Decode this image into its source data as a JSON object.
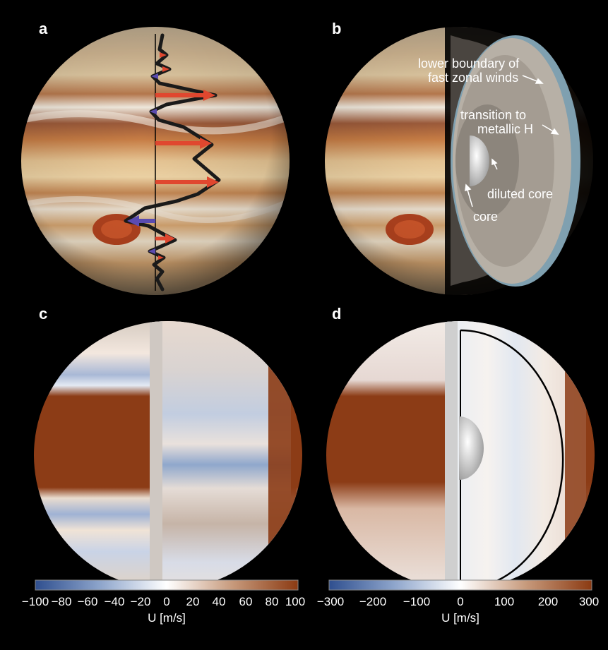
{
  "panels": {
    "a": {
      "label": "a"
    },
    "b": {
      "label": "b",
      "annotations": {
        "lower_boundary": [
          "lower boundary of",
          "fast zonal winds"
        ],
        "transition": [
          "transition to",
          "metallic H"
        ],
        "diluted_core": "diluted core",
        "core": "core"
      }
    },
    "c": {
      "label": "c"
    },
    "d": {
      "label": "d"
    }
  },
  "colorbars": [
    {
      "ticks": [
        "−100",
        "−80",
        "−60",
        "−40",
        "−20",
        "0",
        "20",
        "40",
        "60",
        "80",
        "100"
      ],
      "title": "U [m/s]"
    },
    {
      "ticks": [
        "−300",
        "−200",
        "−100",
        "0",
        "100",
        "200",
        "300"
      ],
      "title": "U [m/s]"
    }
  ],
  "colors": {
    "negative": "#2f4f8f",
    "zero": "#ffffff",
    "positive": "#8b3a12",
    "wind_pos_arrow": "#e0472f",
    "wind_neg_arrow": "#5a4bb0"
  }
}
